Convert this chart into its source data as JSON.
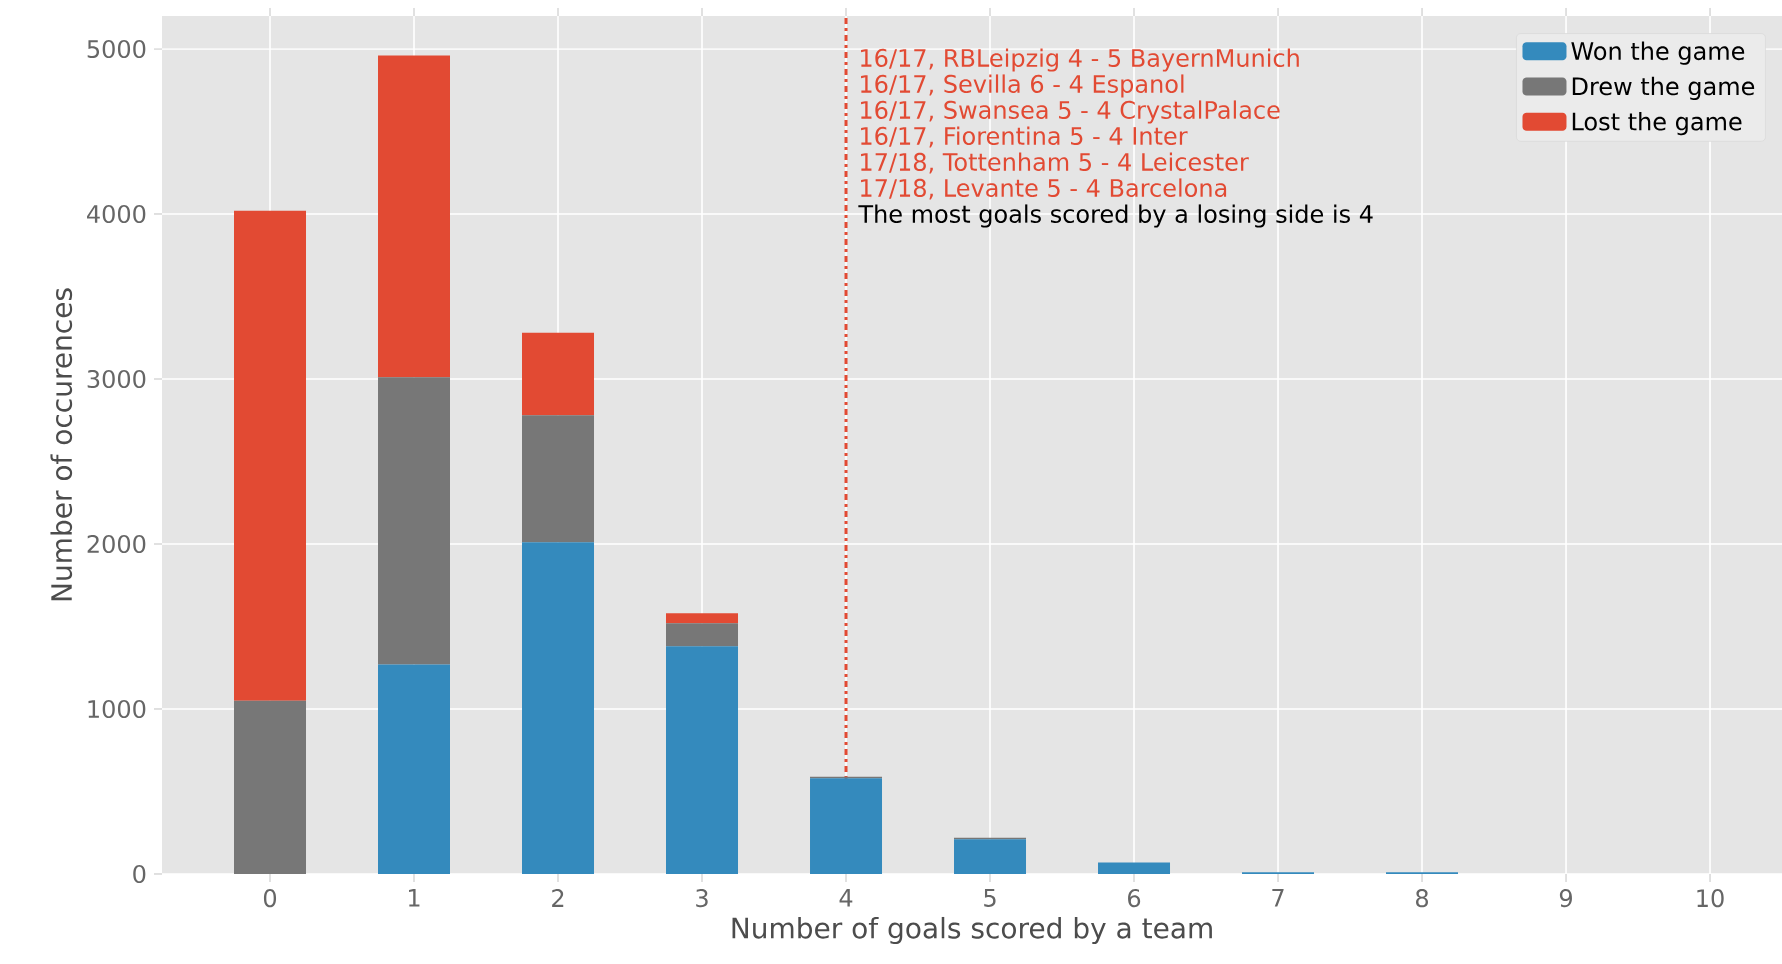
{
  "chart_data": {
    "type": "bar",
    "stacked": true,
    "xlabel": "Number of goals scored by a team",
    "ylabel": "Number of occurences",
    "categories": [
      "0",
      "1",
      "2",
      "3",
      "4",
      "5",
      "6",
      "7",
      "8",
      "9",
      "10"
    ],
    "series": [
      {
        "name": "Won the game",
        "color": "#348abd",
        "values": [
          0,
          1270,
          2010,
          1380,
          580,
          210,
          70,
          10,
          10,
          0,
          0
        ]
      },
      {
        "name": "Drew the game",
        "color": "#777777",
        "values": [
          1050,
          1740,
          770,
          140,
          10,
          10,
          0,
          0,
          0,
          0,
          0
        ]
      },
      {
        "name": "Lost the game",
        "color": "#e24a33",
        "values": [
          2970,
          1950,
          500,
          60,
          0,
          0,
          0,
          0,
          0,
          0,
          0
        ]
      }
    ],
    "ylim": [
      0,
      5200
    ],
    "yticks": [
      0,
      1000,
      2000,
      3000,
      4000,
      5000
    ],
    "grid": true,
    "legend": "top right",
    "ref_lines": [
      {
        "axis": "x",
        "value": "4",
        "color": "#e24a33",
        "line_style": "dashdot"
      }
    ],
    "annotations": [
      "16/17, RBLeipzig 4 - 5 BayernMunich",
      "16/17, Sevilla 6 - 4 Espanol",
      "16/17, Swansea 5 - 4 CrystalPalace",
      "16/17, Fiorentina 5 - 4 Inter",
      "17/18, Tottenham 5 - 4 Leicester",
      "17/18, Levante 5 - 4 Barcelona",
      "The most goals scored by a losing side is 4"
    ]
  }
}
